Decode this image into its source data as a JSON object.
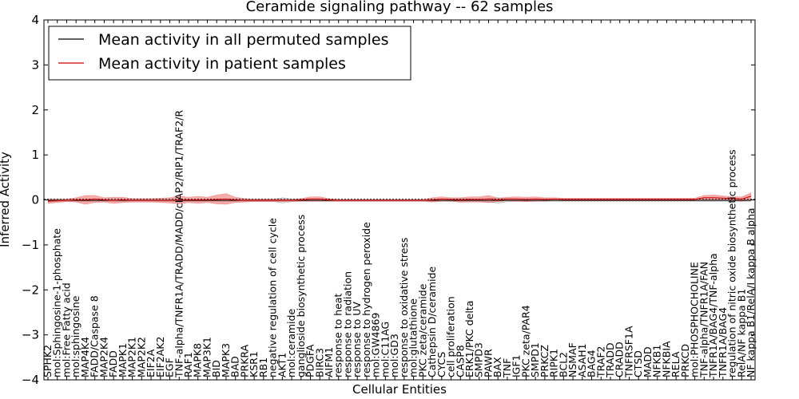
{
  "chart_data": {
    "type": "line",
    "title": "Ceramide signaling pathway -- 62 samples",
    "xlabel": "Cellular Entities",
    "ylabel": "Inferred Activity",
    "ylim": [
      -4,
      4
    ],
    "yticks": [
      -4,
      -3,
      -2,
      -1,
      0,
      1,
      2,
      3,
      4
    ],
    "grid": false,
    "legend_position": "top-left",
    "categories": [
      "SPHK2",
      "mol:Sphingosine-1-phosphate",
      "mol:Free Fatty acid",
      "mol:sphingosine",
      "MAP4K4",
      "FADD/Caspase 8",
      "MAP2K4",
      "FADD",
      "MAPK1",
      "MAP2K1",
      "MAP2K2",
      "EIF2A",
      "EIF2AK2",
      "EGF",
      "TNF-alpha/TNFR1A/TRADD/MADD/cIAP2/RIP1/TRAF2/R",
      "RAF1",
      "MAPK8",
      "MAP3K1",
      "BID",
      "MAPK3",
      "BAD",
      "PRKRA",
      "KSR1",
      "RB1",
      "negative regulation of cell cycle",
      "AKT1",
      "mol:ceramide",
      "ganglioside biosynthetic process",
      "PDGFA",
      "BIRC3",
      "AIFM1",
      "response to heat",
      "response to radiation",
      "response to UV",
      "response to hydrogen peroxide",
      "mol:GW4869",
      "mol:C11AG",
      "mol:GD3",
      "response to oxidative stress",
      "mol:glutathione",
      "PKC zeta/ceramide",
      "Cathepsin D/ceramide",
      "CYCS",
      "cell proliferation",
      "CASP8",
      "ERK1/PKC delta",
      "SMPD3",
      "PAWR",
      "BAX",
      "TNF",
      "IGF1",
      "PKC zeta/PAR4",
      "SMPD1",
      "PRKCZ",
      "RIPK1",
      "BCL2",
      "NSMAF",
      "ASAH1",
      "BAG4",
      "TRAF2",
      "TRADD",
      "CRADD",
      "TNFRSF1A",
      "CTSD",
      "MADD",
      "NFKB1",
      "NFKBIA",
      "RELA",
      "PRKCD",
      "mol:PHOSPHOCHOLINE",
      "TNF-alpha/TNFR1A/FAN",
      "TNFR1A/BAG4/TNF-alpha",
      "TNFR1A/BAG4",
      "regulation of nitric oxide biosynthetic process",
      "RelA/NF kappa B1",
      "NF kappa B1/RelA/I kappa B alpha"
    ],
    "series": [
      {
        "name": "Mean activity in all permuted samples",
        "color": "#000000",
        "values": [
          -0.01,
          -0.01,
          -0.01,
          -0.01,
          -0.01,
          -0.01,
          -0.01,
          -0.01,
          -0.01,
          -0.01,
          -0.01,
          -0.01,
          -0.01,
          -0.01,
          -0.01,
          -0.01,
          -0.01,
          -0.01,
          -0.01,
          -0.01,
          -0.01,
          -0.01,
          -0.01,
          -0.01,
          -0.01,
          -0.01,
          -0.01,
          -0.01,
          -0.01,
          -0.01,
          -0.01,
          -0.01,
          -0.01,
          -0.01,
          -0.01,
          -0.01,
          -0.01,
          -0.01,
          -0.01,
          -0.01,
          -0.01,
          -0.01,
          -0.01,
          -0.01,
          -0.01,
          -0.01,
          -0.01,
          -0.01,
          -0.01,
          -0.01,
          -0.01,
          -0.01,
          -0.01,
          -0.01,
          -0.01,
          -0.01,
          -0.01,
          -0.01,
          -0.01,
          -0.01,
          -0.01,
          -0.01,
          -0.01,
          -0.01,
          -0.01,
          -0.01,
          -0.01,
          -0.01,
          -0.01,
          -0.01,
          -0.01,
          -0.01,
          -0.01,
          -0.01,
          -0.01,
          -0.01
        ],
        "band": [
          0.02,
          0.02,
          0.02,
          0.02,
          0.02,
          0.02,
          0.02,
          0.02,
          0.02,
          0.02,
          0.02,
          0.02,
          0.02,
          0.02,
          0.02,
          0.02,
          0.02,
          0.02,
          0.02,
          0.02,
          0.02,
          0.02,
          0.02,
          0.02,
          0.02,
          0.06,
          0.03,
          0.02,
          0.02,
          0.02,
          0.02,
          0.02,
          0.02,
          0.02,
          0.02,
          0.02,
          0.02,
          0.02,
          0.02,
          0.02,
          0.02,
          0.02,
          0.02,
          0.02,
          0.04,
          0.03,
          0.02,
          0.04,
          0.06,
          0.03,
          0.02,
          0.02,
          0.02,
          0.02,
          0.02,
          0.02,
          0.02,
          0.02,
          0.02,
          0.02,
          0.02,
          0.02,
          0.02,
          0.02,
          0.02,
          0.02,
          0.02,
          0.02,
          0.02,
          0.02,
          0.02,
          0.02,
          0.02,
          0.02,
          0.02,
          0.02
        ]
      },
      {
        "name": "Mean activity in patient samples",
        "color": "#cc0000",
        "values": [
          -0.03,
          -0.02,
          -0.01,
          0.0,
          0.0,
          0.02,
          0.0,
          -0.01,
          0.0,
          -0.01,
          -0.01,
          -0.01,
          -0.01,
          -0.01,
          0.0,
          0.0,
          0.0,
          0.0,
          0.01,
          0.02,
          0.0,
          -0.01,
          -0.01,
          -0.01,
          -0.01,
          -0.01,
          -0.01,
          0.0,
          0.02,
          0.02,
          0.0,
          -0.01,
          -0.01,
          -0.01,
          -0.01,
          -0.01,
          -0.01,
          -0.01,
          -0.01,
          -0.01,
          -0.01,
          0.0,
          0.02,
          0.01,
          0.0,
          0.01,
          0.01,
          0.02,
          0.0,
          0.02,
          0.02,
          0.01,
          0.02,
          0.01,
          0.02,
          0.01,
          0.01,
          0.01,
          0.01,
          0.01,
          0.01,
          0.01,
          0.01,
          0.01,
          0.01,
          0.01,
          0.01,
          0.01,
          0.01,
          0.01,
          0.05,
          0.05,
          0.04,
          0.03,
          0.02,
          0.08
        ],
        "band": [
          0.05,
          0.04,
          0.03,
          0.05,
          0.1,
          0.08,
          0.05,
          0.07,
          0.06,
          0.04,
          0.04,
          0.04,
          0.05,
          0.06,
          0.09,
          0.06,
          0.08,
          0.06,
          0.1,
          0.12,
          0.06,
          0.04,
          0.03,
          0.03,
          0.03,
          0.03,
          0.02,
          0.03,
          0.05,
          0.05,
          0.03,
          0.02,
          0.02,
          0.02,
          0.02,
          0.02,
          0.02,
          0.02,
          0.02,
          0.02,
          0.02,
          0.05,
          0.05,
          0.04,
          0.05,
          0.06,
          0.06,
          0.08,
          0.04,
          0.04,
          0.05,
          0.05,
          0.05,
          0.04,
          0.03,
          0.03,
          0.03,
          0.03,
          0.03,
          0.03,
          0.03,
          0.03,
          0.03,
          0.03,
          0.03,
          0.03,
          0.03,
          0.03,
          0.03,
          0.03,
          0.05,
          0.06,
          0.05,
          0.04,
          0.05,
          0.08
        ]
      }
    ]
  }
}
